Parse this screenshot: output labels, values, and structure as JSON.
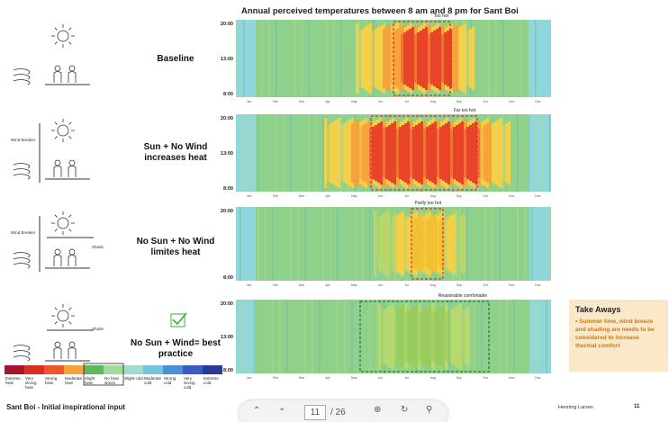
{
  "title": "Annual perceived temperatures between 8 am and 8 pm for Sant Boi",
  "months": [
    "Jan",
    "Feb",
    "Mar",
    "Apr",
    "May",
    "Jun",
    "Jul",
    "Aug",
    "Sep",
    "Oct",
    "Nov",
    "Dec"
  ],
  "panels": [
    {
      "label": "Baseline",
      "note": "Too hot",
      "yticks": [
        "20:00",
        "13:00",
        "8:00"
      ],
      "icon_labels": []
    },
    {
      "label": "Sun + No Wind increases heat",
      "note": "Far too hot",
      "yticks": [
        "20:00",
        "13:00",
        "8:00"
      ],
      "icon_labels": [
        "Wind Breaker"
      ]
    },
    {
      "label": "No Sun + No Wind limites heat",
      "note": "Partly too hot",
      "yticks": [
        "20:00",
        "8:00"
      ],
      "icon_labels": [
        "Wind Breaker",
        "Shade"
      ]
    },
    {
      "label": "No Sun + Wind= best practice",
      "note": "Reasonable  comfortable",
      "yticks": [
        "20:00",
        "13:00",
        "8:00"
      ],
      "icon_labels": [
        "Shade"
      ]
    }
  ],
  "legend": [
    {
      "label": "Extreme heat",
      "color": "#a3172a"
    },
    {
      "label": "Very strong heat",
      "color": "#d7301f"
    },
    {
      "label": "Strong heat",
      "color": "#f0562e"
    },
    {
      "label": "Moderate heat",
      "color": "#f7a33c"
    },
    {
      "label": "Slight heat",
      "color": "#5cb85c"
    },
    {
      "label": "No heat stress",
      "color": "#a5d99b"
    },
    {
      "label": "Slight cold",
      "color": "#9fdccf"
    },
    {
      "label": "Moderate cold",
      "color": "#74c4dd"
    },
    {
      "label": "Strong cold",
      "color": "#4b8fd6"
    },
    {
      "label": "Very strong cold",
      "color": "#3a5cc4"
    },
    {
      "label": "Extreme cold",
      "color": "#2a3a96"
    }
  ],
  "takeaways": {
    "title": "Take Aways",
    "text": "• Summer time, wind breeze and shading are needs to be considered to increase thermal comfort"
  },
  "footer": {
    "caption": "Sant Boi - Initial inspirational input",
    "brand": "Henning Larsen",
    "page": "11"
  },
  "toolbar": {
    "page": "11",
    "total": "/ 26"
  }
}
